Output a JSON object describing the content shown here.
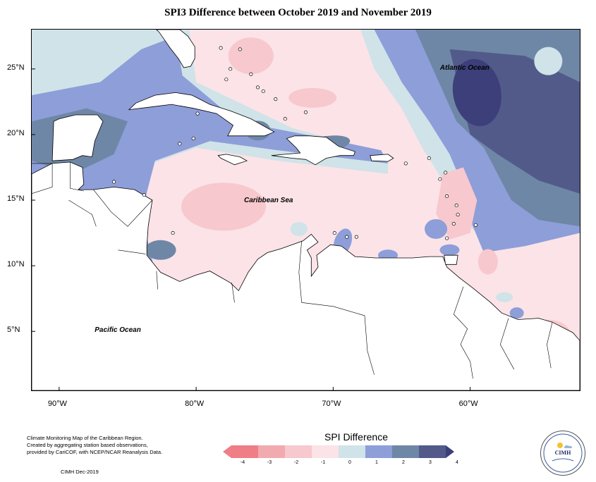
{
  "title": "SPI3 Difference between October 2019 and November 2019",
  "map": {
    "extent": {
      "lon_min": -92.0,
      "lon_max": -52.0,
      "lat_min": 0.5,
      "lat_max": 28.0
    },
    "lat_ticks": [
      {
        "value": 25,
        "label": "25°N"
      },
      {
        "value": 20,
        "label": "20°N"
      },
      {
        "value": 15,
        "label": "15°N"
      },
      {
        "value": 10,
        "label": "10°N"
      },
      {
        "value": 5,
        "label": "5°N"
      }
    ],
    "lon_ticks": [
      {
        "value": -90,
        "label": "90°W"
      },
      {
        "value": -80,
        "label": "80°W"
      },
      {
        "value": -70,
        "label": "70°W"
      },
      {
        "value": -60,
        "label": "60°W"
      }
    ],
    "labels": [
      {
        "text": "Atlantic Ocean",
        "lon": -60.3,
        "lat": 25.0
      },
      {
        "text": "Caribbean Sea",
        "lon": -74.6,
        "lat": 14.9
      },
      {
        "text": "Pacific Ocean",
        "lon": -85.5,
        "lat": 5.0
      }
    ],
    "colors": {
      "-4": "#ef7e86",
      "-3": "#f0aab0",
      "-2": "#f7c8cd",
      "-1": "#fbe3e7",
      "0": "#cfe3e9",
      "1": "#8d9ed9",
      "2": "#6f87a6",
      "3": "#525a8a",
      "4": "#3c3f7a"
    }
  },
  "legend": {
    "title": "SPI Difference",
    "ticks": [
      "-4",
      "-3",
      "-2",
      "-1",
      "0",
      "1",
      "2",
      "3",
      "4"
    ]
  },
  "credits": {
    "line1": "Climate Monitoring Map of the Caribbean Region.",
    "line2": "Created by aggregating station based observations,",
    "line3": "provided by CariCOF, with NCEP/NCAR Reanalysis Data.",
    "footer": "CIMH Dec-2019"
  },
  "logo": {
    "text": "CIMH"
  }
}
